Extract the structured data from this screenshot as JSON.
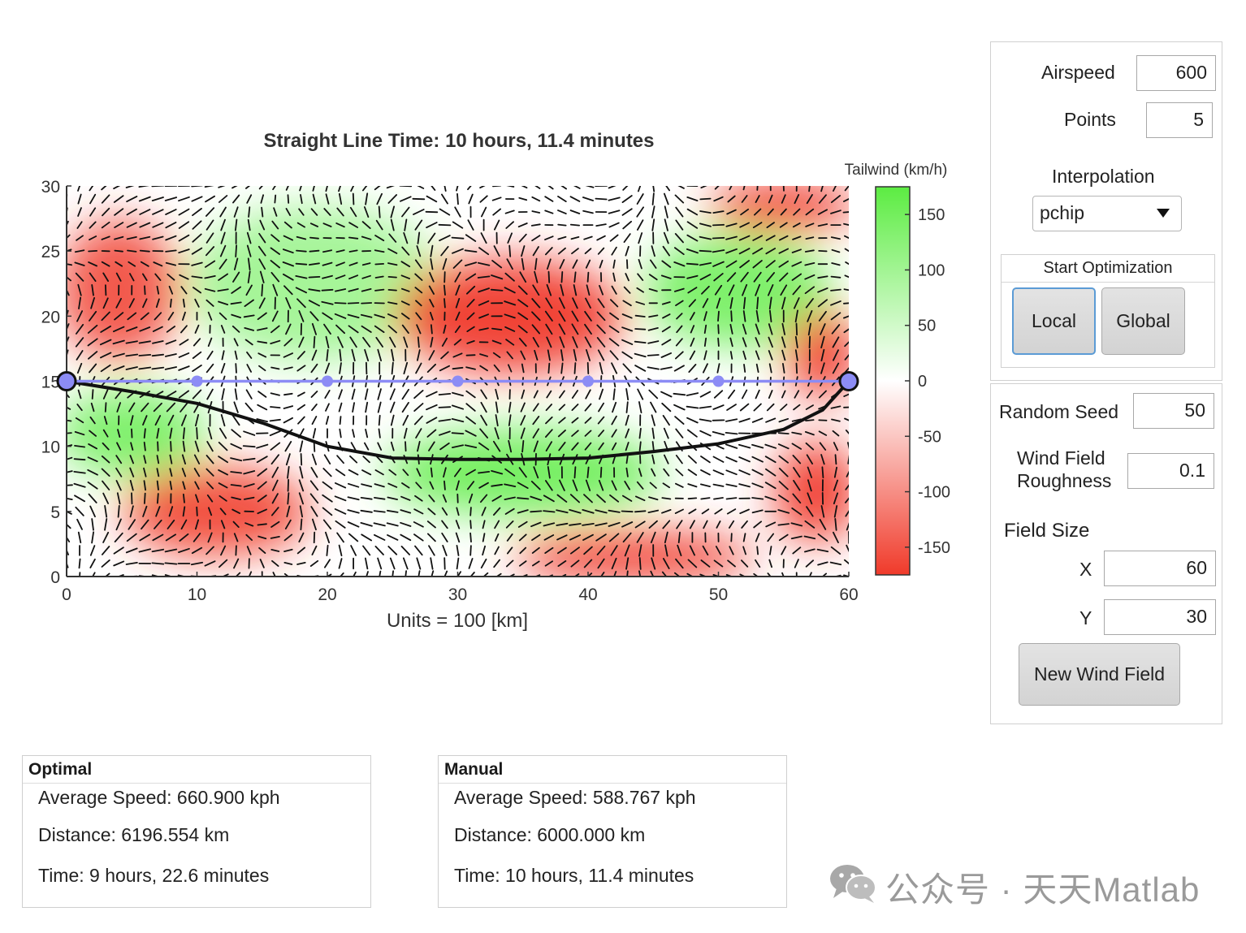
{
  "plot": {
    "title": "Straight Line Time: 10 hours, 11.4 minutes",
    "xlabel": "Units = 100 [km]",
    "x_ticks": [
      "0",
      "10",
      "20",
      "30",
      "40",
      "50",
      "60"
    ],
    "y_ticks": [
      "0",
      "5",
      "10",
      "15",
      "20",
      "25",
      "30"
    ],
    "colorbar": {
      "label": "Tailwind (km/h)",
      "ticks": [
        "150",
        "100",
        "50",
        "0",
        "-50",
        "-100",
        "-150"
      ],
      "range": [
        -175,
        175
      ],
      "top_color": "#5cec42",
      "mid_color": "#ffffff",
      "bottom_color": "#f03a2a"
    }
  },
  "chart_data": {
    "type": "line",
    "xlabel": "Units = 100 [km]",
    "ylabel": "",
    "xlim": [
      0,
      60
    ],
    "ylim": [
      0,
      30
    ],
    "colorbar_label": "Tailwind (km/h)",
    "colorbar_range": [
      -175,
      175
    ],
    "series": [
      {
        "color": "#8c8cf5",
        "marker": "filled-circle",
        "x": [
          0,
          10,
          20,
          30,
          40,
          50,
          60
        ],
        "y": [
          15,
          15,
          15,
          15,
          15,
          15,
          15
        ]
      },
      {
        "color": "#111111",
        "marker": "none",
        "x": [
          0,
          5,
          10,
          15,
          20,
          25,
          30,
          35,
          40,
          45,
          50,
          55,
          58,
          60
        ],
        "y": [
          15,
          14.2,
          13.3,
          11.8,
          10.0,
          9.1,
          9.0,
          9.0,
          9.1,
          9.6,
          10.2,
          11.3,
          12.8,
          15
        ]
      }
    ],
    "wind_field": {
      "description_of_regions": [
        {
          "x": [
            0,
            8
          ],
          "y": [
            17,
            27
          ],
          "tailwind": -120
        },
        {
          "x": [
            10,
            28
          ],
          "y": [
            17,
            28
          ],
          "tailwind": 70
        },
        {
          "x": [
            26,
            42
          ],
          "y": [
            16,
            24
          ],
          "tailwind": -150
        },
        {
          "x": [
            45,
            58
          ],
          "y": [
            18,
            26
          ],
          "tailwind": 110
        },
        {
          "x": [
            50,
            60
          ],
          "y": [
            27,
            30
          ],
          "tailwind": -150
        },
        {
          "x": [
            0,
            10
          ],
          "y": [
            8,
            14
          ],
          "tailwind": 110
        },
        {
          "x": [
            5,
            18
          ],
          "y": [
            2,
            8
          ],
          "tailwind": -130
        },
        {
          "x": [
            25,
            45
          ],
          "y": [
            5,
            11
          ],
          "tailwind": 120
        },
        {
          "x": [
            35,
            52
          ],
          "y": [
            0,
            3
          ],
          "tailwind": -140
        },
        {
          "x": [
            55,
            60
          ],
          "y": [
            3,
            10
          ],
          "tailwind": -160
        },
        {
          "x": [
            56,
            60
          ],
          "y": [
            14,
            20
          ],
          "tailwind": -140
        }
      ]
    }
  },
  "controls": {
    "airspeed_label": "Airspeed",
    "airspeed_value": "600",
    "points_label": "Points",
    "points_value": "5",
    "interpolation_label": "Interpolation",
    "interpolation_value": "pchip",
    "start_group_title": "Start Optimization",
    "local_label": "Local",
    "global_label": "Global",
    "seed_label": "Random Seed",
    "seed_value": "50",
    "roughness_label_1": "Wind Field",
    "roughness_label_2": "Roughness",
    "roughness_value": "0.1",
    "field_size_label": "Field Size",
    "x_label": "X",
    "x_value": "60",
    "y_label": "Y",
    "y_value": "30",
    "new_field_label": "New Wind Field"
  },
  "optimal": {
    "title": "Optimal",
    "speed": "Average Speed: 660.900 kph",
    "distance": "Distance: 6196.554 km",
    "time": "Time: 9 hours, 22.6 minutes"
  },
  "manual": {
    "title": "Manual",
    "speed": "Average Speed: 588.767 kph",
    "distance": "Distance: 6000.000 km",
    "time": "Time: 10 hours, 11.4 minutes"
  },
  "watermark": {
    "text": "公众号 · 天天Matlab",
    "icon": "wechat-icon"
  }
}
